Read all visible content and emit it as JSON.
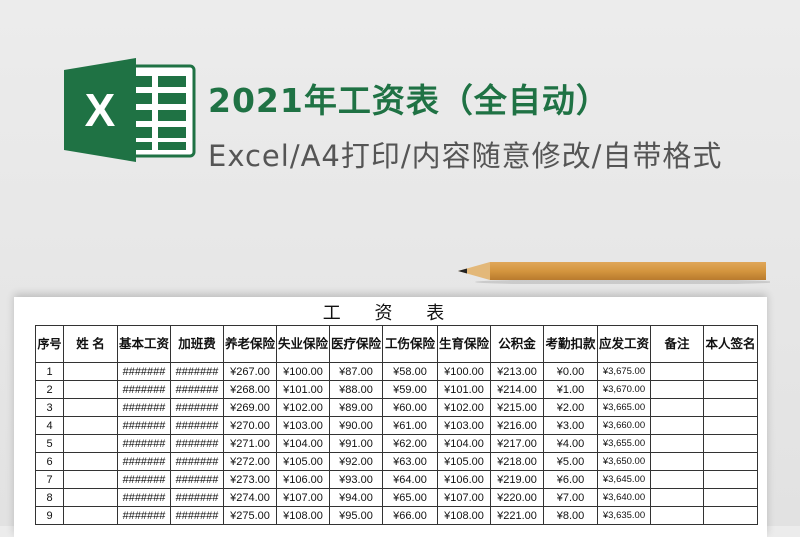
{
  "header": {
    "title": "2021年工资表（全自动）",
    "subtitle": "Excel/A4打印/内容随意修改/自带格式",
    "logo_letter": "X",
    "brand_color": "#1f7244"
  },
  "sheet": {
    "title": "工 资 表",
    "columns": [
      "序号",
      "姓 名",
      "基本工资",
      "加班费",
      "养老保险",
      "失业保险",
      "医疗保险",
      "工伤保险",
      "生育保险",
      "公积金",
      "考勤扣款",
      "应发工资",
      "备注",
      "本人签名"
    ],
    "rows": [
      [
        "1",
        "",
        "#######",
        "#######",
        "¥267.00",
        "¥100.00",
        "¥87.00",
        "¥58.00",
        "¥100.00",
        "¥213.00",
        "¥0.00",
        "¥3,675.00",
        "",
        ""
      ],
      [
        "2",
        "",
        "#######",
        "#######",
        "¥268.00",
        "¥101.00",
        "¥88.00",
        "¥59.00",
        "¥101.00",
        "¥214.00",
        "¥1.00",
        "¥3,670.00",
        "",
        ""
      ],
      [
        "3",
        "",
        "#######",
        "#######",
        "¥269.00",
        "¥102.00",
        "¥89.00",
        "¥60.00",
        "¥102.00",
        "¥215.00",
        "¥2.00",
        "¥3,665.00",
        "",
        ""
      ],
      [
        "4",
        "",
        "#######",
        "#######",
        "¥270.00",
        "¥103.00",
        "¥90.00",
        "¥61.00",
        "¥103.00",
        "¥216.00",
        "¥3.00",
        "¥3,660.00",
        "",
        ""
      ],
      [
        "5",
        "",
        "#######",
        "#######",
        "¥271.00",
        "¥104.00",
        "¥91.00",
        "¥62.00",
        "¥104.00",
        "¥217.00",
        "¥4.00",
        "¥3,655.00",
        "",
        ""
      ],
      [
        "6",
        "",
        "#######",
        "#######",
        "¥272.00",
        "¥105.00",
        "¥92.00",
        "¥63.00",
        "¥105.00",
        "¥218.00",
        "¥5.00",
        "¥3,650.00",
        "",
        ""
      ],
      [
        "7",
        "",
        "#######",
        "#######",
        "¥273.00",
        "¥106.00",
        "¥93.00",
        "¥64.00",
        "¥106.00",
        "¥219.00",
        "¥6.00",
        "¥3,645.00",
        "",
        ""
      ],
      [
        "8",
        "",
        "#######",
        "#######",
        "¥274.00",
        "¥107.00",
        "¥94.00",
        "¥65.00",
        "¥107.00",
        "¥220.00",
        "¥7.00",
        "¥3,640.00",
        "",
        ""
      ],
      [
        "9",
        "",
        "#######",
        "#######",
        "¥275.00",
        "¥108.00",
        "¥95.00",
        "¥66.00",
        "¥108.00",
        "¥221.00",
        "¥8.00",
        "¥3,635.00",
        "",
        ""
      ]
    ]
  }
}
